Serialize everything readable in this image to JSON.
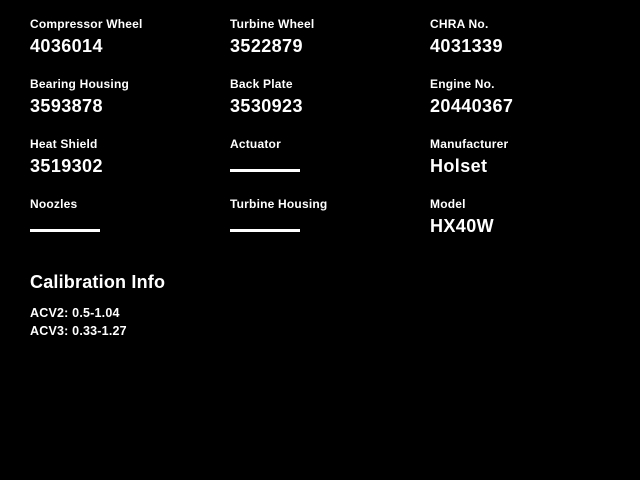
{
  "colors": {
    "background": "#000000",
    "text": "#ffffff"
  },
  "fields": [
    {
      "label": "Compressor Wheel",
      "value": "4036014"
    },
    {
      "label": "Turbine Wheel",
      "value": "3522879"
    },
    {
      "label": "CHRA No.",
      "value": "4031339"
    },
    {
      "label": "Bearing Housing",
      "value": "3593878"
    },
    {
      "label": "Back Plate",
      "value": "3530923"
    },
    {
      "label": "Engine No.",
      "value": "20440367"
    },
    {
      "label": "Heat Shield",
      "value": "3519302"
    },
    {
      "label": "Actuator",
      "value": null
    },
    {
      "label": "Manufacturer",
      "value": "Holset"
    },
    {
      "label": "Noozles",
      "value": null
    },
    {
      "label": "Turbine Housing",
      "value": null
    },
    {
      "label": "Model",
      "value": "HX40W"
    }
  ],
  "calibration": {
    "title": "Calibration Info",
    "lines": [
      "ACV2: 0.5-1.04",
      "ACV3: 0.33-1.27"
    ]
  }
}
